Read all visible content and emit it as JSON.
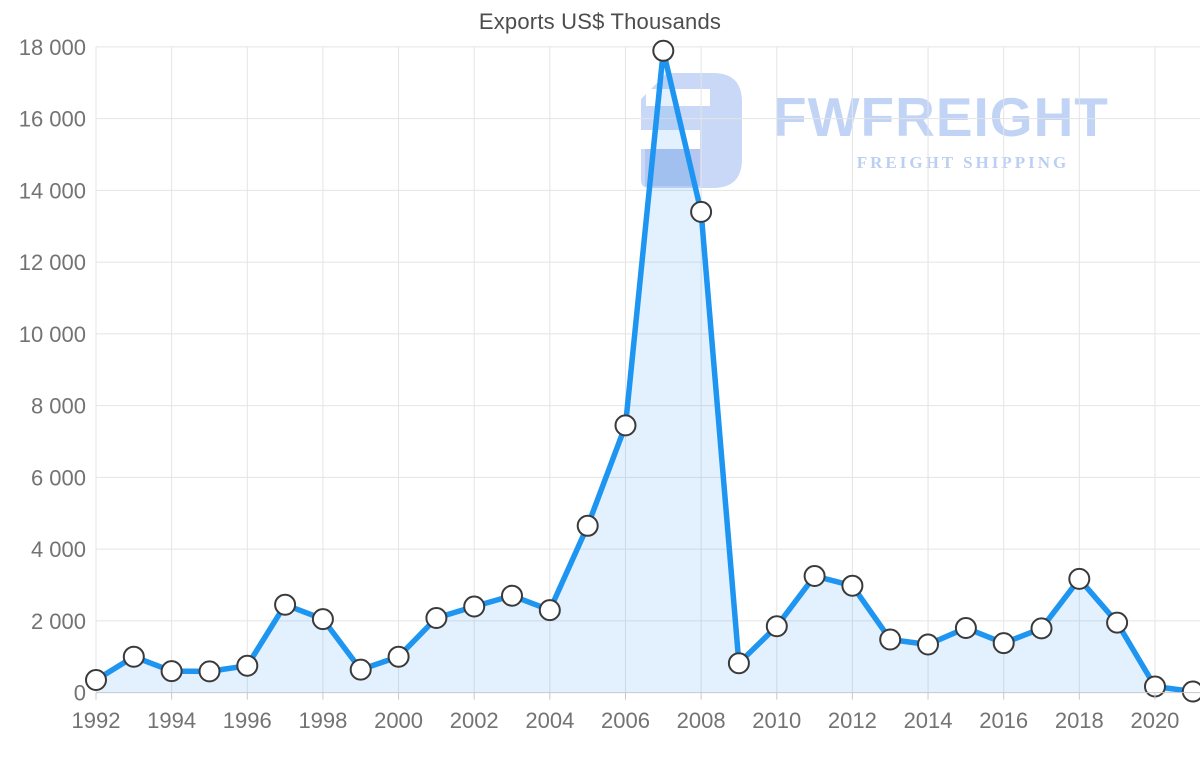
{
  "title": "Exports US$ Thousands",
  "watermark": {
    "brand": "FWFREIGHT",
    "tagline": "FREIGHT SHIPPING",
    "logo_icon": "fwfreight-logo-icon",
    "brand_color": "#9dbbf0",
    "logo_color": "#a9c1f2",
    "logo_accent_color": "#7e9ce6"
  },
  "colors": {
    "line": "#1e96f1",
    "area_fill": "rgba(30,150,241,0.13)",
    "marker_fill": "#ffffff",
    "marker_stroke": "#3a3a3a",
    "grid": "#e4e4e4",
    "axis": "#c8c8c8",
    "label_text": "#737373",
    "title_text": "#4d4d4d"
  },
  "chart_data": {
    "type": "area",
    "title": "Exports US$ Thousands",
    "xlabel": "",
    "ylabel": "",
    "x": [
      1992,
      1993,
      1994,
      1995,
      1996,
      1997,
      1998,
      1999,
      2000,
      2001,
      2002,
      2003,
      2004,
      2005,
      2006,
      2007,
      2008,
      2009,
      2010,
      2011,
      2012,
      2013,
      2014,
      2015,
      2016,
      2017,
      2018,
      2019,
      2020,
      2021
    ],
    "values": [
      350,
      1000,
      600,
      590,
      750,
      2450,
      2050,
      640,
      1000,
      2080,
      2400,
      2700,
      2300,
      4650,
      7450,
      17890,
      13400,
      820,
      1850,
      3250,
      2980,
      1480,
      1340,
      1800,
      1380,
      1790,
      3170,
      1950,
      170,
      30
    ],
    "ylim": [
      0,
      18000
    ],
    "y_ticks": [
      0,
      2000,
      4000,
      6000,
      8000,
      10000,
      12000,
      14000,
      16000,
      18000
    ],
    "y_tick_labels": [
      "0",
      "2 000",
      "4 000",
      "6 000",
      "8 000",
      "10 000",
      "12 000",
      "14 000",
      "16 000",
      "18 000"
    ],
    "x_ticks": [
      1992,
      1994,
      1996,
      1998,
      2000,
      2002,
      2004,
      2006,
      2008,
      2010,
      2012,
      2014,
      2016,
      2018,
      2020
    ],
    "x_tick_labels": [
      "1992",
      "1994",
      "1996",
      "1998",
      "2000",
      "2002",
      "2004",
      "2006",
      "2008",
      "2010",
      "2012",
      "2014",
      "2016",
      "2018",
      "2020"
    ],
    "grid": true,
    "legend": false,
    "marker": "circle"
  }
}
